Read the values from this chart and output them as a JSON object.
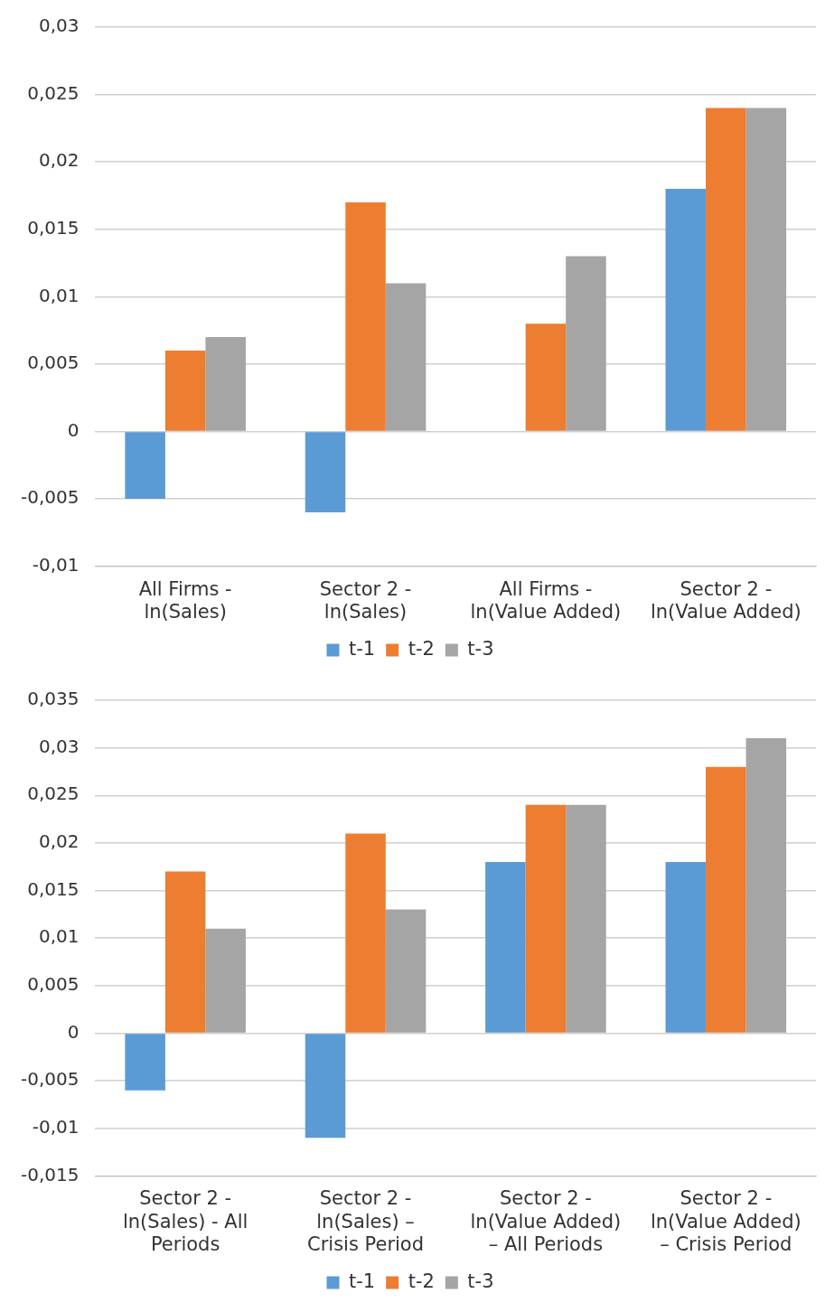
{
  "chart_data": [
    {
      "type": "bar",
      "categories": [
        "All Firms - ln(Sales)",
        "Sector 2 - ln(Sales)",
        "All Firms - ln(Value Added)",
        "Sector 2 - ln(Value Added)"
      ],
      "series": [
        {
          "name": "t-1",
          "color": "#5b9bd5",
          "values": [
            -0.005,
            -0.006,
            null,
            0.018
          ]
        },
        {
          "name": "t-2",
          "color": "#ed7d31",
          "values": [
            0.006,
            0.017,
            0.008,
            0.024
          ]
        },
        {
          "name": "t-3",
          "color": "#a5a5a5",
          "values": [
            0.007,
            0.011,
            0.013,
            0.024
          ]
        }
      ],
      "ylim": [
        -0.01,
        0.03
      ],
      "yticks": [
        {
          "value": -0.01,
          "label": "-0,01"
        },
        {
          "value": -0.005,
          "label": "-0,005"
        },
        {
          "value": 0,
          "label": "0"
        },
        {
          "value": 0.005,
          "label": "0,005"
        },
        {
          "value": 0.01,
          "label": "0,01"
        },
        {
          "value": 0.015,
          "label": "0,015"
        },
        {
          "value": 0.02,
          "label": "0,02"
        },
        {
          "value": 0.025,
          "label": "0,025"
        },
        {
          "value": 0.03,
          "label": "0,03"
        }
      ],
      "grid": "y",
      "legend": "bottom"
    },
    {
      "type": "bar",
      "categories": [
        "Sector 2 - ln(Sales) - All Periods",
        "Sector 2 - ln(Sales) – Crisis Period",
        "Sector 2 - ln(Value Added) – All Periods",
        "Sector 2 - ln(Value Added) – Crisis Period"
      ],
      "series": [
        {
          "name": "t-1",
          "color": "#5b9bd5",
          "values": [
            -0.006,
            -0.011,
            0.018,
            0.018
          ]
        },
        {
          "name": "t-2",
          "color": "#ed7d31",
          "values": [
            0.017,
            0.021,
            0.024,
            0.028
          ]
        },
        {
          "name": "t-3",
          "color": "#a5a5a5",
          "values": [
            0.011,
            0.013,
            0.024,
            0.031
          ]
        }
      ],
      "ylim": [
        -0.015,
        0.035
      ],
      "yticks": [
        {
          "value": -0.015,
          "label": "-0,015"
        },
        {
          "value": -0.01,
          "label": "-0,01"
        },
        {
          "value": -0.005,
          "label": "-0,005"
        },
        {
          "value": 0,
          "label": "0"
        },
        {
          "value": 0.005,
          "label": "0,005"
        },
        {
          "value": 0.01,
          "label": "0,01"
        },
        {
          "value": 0.015,
          "label": "0,015"
        },
        {
          "value": 0.02,
          "label": "0,02"
        },
        {
          "value": 0.025,
          "label": "0,025"
        },
        {
          "value": 0.03,
          "label": "0,03"
        },
        {
          "value": 0.035,
          "label": "0,035"
        }
      ],
      "grid": "y",
      "legend": "bottom"
    }
  ]
}
